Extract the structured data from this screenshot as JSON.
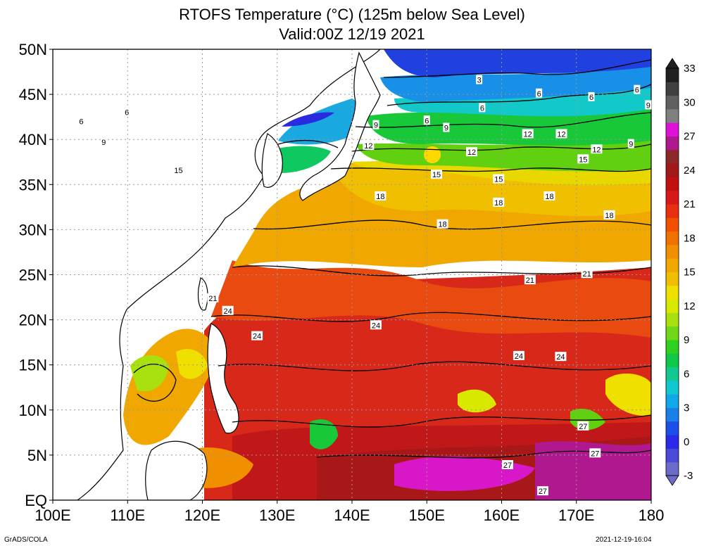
{
  "title": {
    "line1": "RTOFS Temperature (°C) (125m below Sea Level)",
    "line2": "Valid:00Z 12/19 2021"
  },
  "axes": {
    "lon_labels": [
      "100E",
      "110E",
      "120E",
      "130E",
      "140E",
      "150E",
      "160E",
      "170E",
      "180"
    ],
    "lat_labels": [
      "EQ",
      "5N",
      "10N",
      "15N",
      "20N",
      "25N",
      "30N",
      "35N",
      "40N",
      "45N",
      "50N"
    ],
    "lon_range": [
      100,
      180
    ],
    "lat_range": [
      0,
      50
    ]
  },
  "colorbar": {
    "labels": [
      "-3",
      "0",
      "3",
      "6",
      "9",
      "12",
      "15",
      "18",
      "21",
      "24",
      "27",
      "30",
      "33"
    ],
    "colors": [
      "#6b6bc8",
      "#4a4ad8",
      "#2a2ae8",
      "#1b4fe8",
      "#1a7fe8",
      "#10a8e8",
      "#10c8d0",
      "#10c890",
      "#10c848",
      "#30d020",
      "#70d818",
      "#a8e010",
      "#d8e800",
      "#f0e000",
      "#f0c000",
      "#f0a800",
      "#f09000",
      "#f07000",
      "#f05000",
      "#e83010",
      "#d81818",
      "#c01010",
      "#a01818",
      "#8c2828",
      "#b01890",
      "#e010d8",
      "#808080",
      "#606060",
      "#404040",
      "#202020"
    ]
  },
  "contour_labels": [
    {
      "t": "3",
      "lon": 157.0,
      "lat": 46.6
    },
    {
      "t": "6",
      "lon": 172.0,
      "lat": 44.7
    },
    {
      "t": "6",
      "lon": 157.4,
      "lat": 43.5
    },
    {
      "t": "6",
      "lon": 165.0,
      "lat": 45.1
    },
    {
      "t": "6",
      "lon": 178.1,
      "lat": 45.5
    },
    {
      "t": "6",
      "lon": 109.9,
      "lat": 43.0
    },
    {
      "t": "6",
      "lon": 103.8,
      "lat": 42.0
    },
    {
      "t": "6",
      "lon": 150.0,
      "lat": 42.1
    },
    {
      "t": "9",
      "lon": 179.6,
      "lat": 43.8
    },
    {
      "t": "9",
      "lon": 143.2,
      "lat": 41.6
    },
    {
      "t": "9",
      "lon": 152.6,
      "lat": 41.3
    },
    {
      "t": "9",
      "lon": 177.3,
      "lat": 39.5
    },
    {
      "t": "9",
      "lon": 106.8,
      "lat": 39.7
    },
    {
      "t": "12",
      "lon": 142.2,
      "lat": 39.3
    },
    {
      "t": "12",
      "lon": 156.0,
      "lat": 38.6
    },
    {
      "t": "12",
      "lon": 163.5,
      "lat": 40.6
    },
    {
      "t": "12",
      "lon": 168.0,
      "lat": 40.6
    },
    {
      "t": "12",
      "lon": 172.7,
      "lat": 38.9
    },
    {
      "t": "15",
      "lon": 116.8,
      "lat": 36.6
    },
    {
      "t": "15",
      "lon": 151.3,
      "lat": 36.1
    },
    {
      "t": "15",
      "lon": 159.6,
      "lat": 35.6
    },
    {
      "t": "15",
      "lon": 170.9,
      "lat": 37.8
    },
    {
      "t": "18",
      "lon": 143.8,
      "lat": 33.7
    },
    {
      "t": "18",
      "lon": 152.1,
      "lat": 30.6
    },
    {
      "t": "18",
      "lon": 159.6,
      "lat": 33.0
    },
    {
      "t": "18",
      "lon": 166.4,
      "lat": 33.7
    },
    {
      "t": "18",
      "lon": 174.4,
      "lat": 31.6
    },
    {
      "t": "21",
      "lon": 121.4,
      "lat": 22.4
    },
    {
      "t": "21",
      "lon": 163.8,
      "lat": 24.4
    },
    {
      "t": "21",
      "lon": 171.4,
      "lat": 25.1
    },
    {
      "t": "24",
      "lon": 123.4,
      "lat": 21.0
    },
    {
      "t": "24",
      "lon": 127.3,
      "lat": 18.2
    },
    {
      "t": "24",
      "lon": 143.2,
      "lat": 19.4
    },
    {
      "t": "24",
      "lon": 162.3,
      "lat": 16.0
    },
    {
      "t": "24",
      "lon": 167.9,
      "lat": 15.9
    },
    {
      "t": "27",
      "lon": 170.9,
      "lat": 8.2
    },
    {
      "t": "27",
      "lon": 160.8,
      "lat": 3.9
    },
    {
      "t": "27",
      "lon": 172.5,
      "lat": 5.2
    },
    {
      "t": "27",
      "lon": 165.5,
      "lat": 1.0
    }
  ],
  "credits": {
    "left": "GrADS/COLA",
    "right": "2021-12-19-16:04"
  }
}
